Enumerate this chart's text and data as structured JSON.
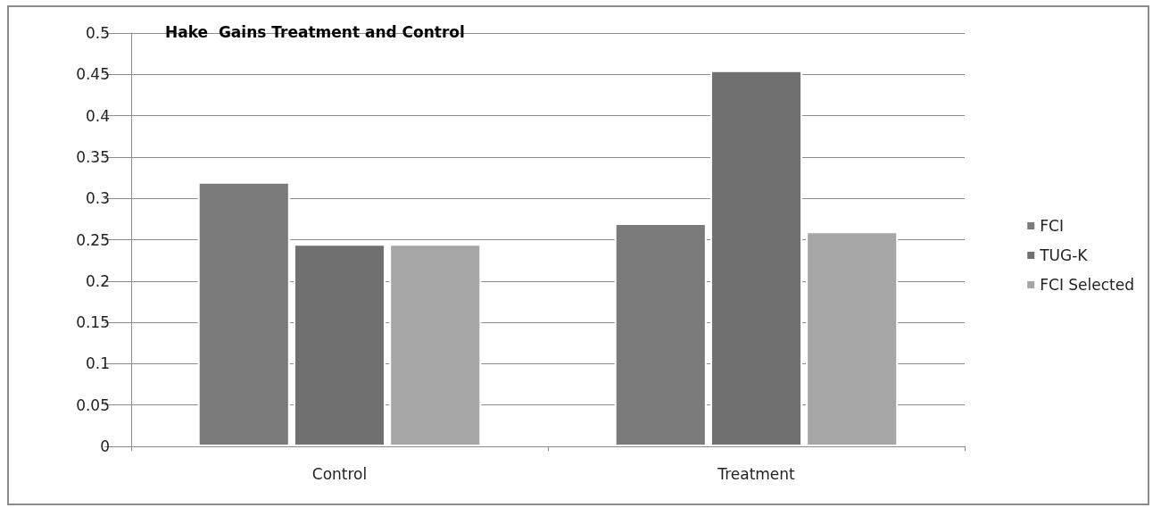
{
  "chart_data": {
    "type": "bar",
    "title": "Hake  Gains Treatment and Control",
    "categories": [
      "Control",
      "Treatment"
    ],
    "series": [
      {
        "name": "FCI",
        "color": "#7a7a7a",
        "values": [
          0.32,
          0.27
        ]
      },
      {
        "name": "TUG-K",
        "color": "#707070",
        "values": [
          0.245,
          0.455
        ]
      },
      {
        "name": "FCI Selected",
        "color": "#a6a6a6",
        "values": [
          0.245,
          0.26
        ]
      }
    ],
    "ylim": [
      0,
      0.5
    ],
    "yticks": [
      0,
      0.05,
      0.1,
      0.15,
      0.2,
      0.25,
      0.3,
      0.35,
      0.4,
      0.45,
      0.5
    ],
    "grid": "y",
    "legend": "right"
  }
}
